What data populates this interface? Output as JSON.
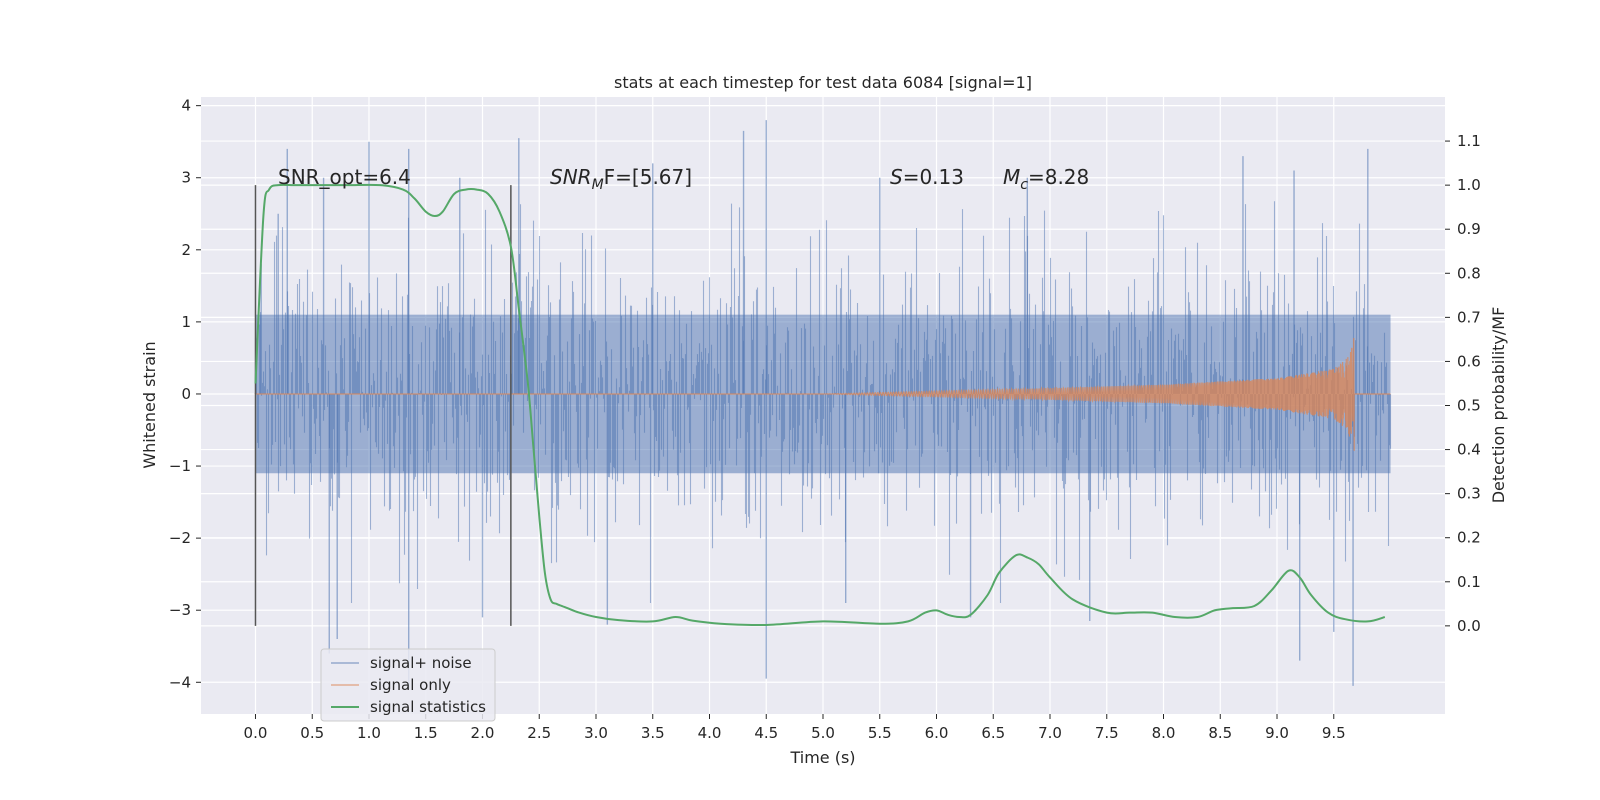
{
  "chart_data": {
    "type": "line",
    "title": "stats at each timestep for test data 6084 [signal=1]",
    "xlabel": "Time (s)",
    "ylabel": "Whitened strain",
    "ylabel_right": "Detection probability/MF",
    "xlim": [
      -0.48,
      10.48
    ],
    "ylim": [
      -4.44,
      4.12
    ],
    "ylim_right": [
      -0.2,
      1.2
    ],
    "x_ticks": [
      "0.0",
      "0.5",
      "1.0",
      "1.5",
      "2.0",
      "2.5",
      "3.0",
      "3.5",
      "4.0",
      "4.5",
      "5.0",
      "5.5",
      "6.0",
      "6.5",
      "7.0",
      "7.5",
      "8.0",
      "8.5",
      "9.0",
      "9.5"
    ],
    "y_ticks": [
      "−4",
      "−3",
      "−2",
      "−1",
      "0",
      "1",
      "2",
      "3",
      "4"
    ],
    "y_right_ticks": [
      "0.0",
      "0.1",
      "0.2",
      "0.3",
      "0.4",
      "0.5",
      "0.6",
      "0.7",
      "0.8",
      "0.9",
      "1.0",
      "1.1"
    ],
    "grid": true,
    "legend_position": "lower-left",
    "colors": {
      "signal_noise": "#4c72b0",
      "signal_only": "#dd8452",
      "statistics": "#55a868",
      "axes_bg": "#eaeaf2",
      "grid": "#ffffff",
      "vline": "#555555"
    },
    "annotations": {
      "snr_opt": "SNR_opt=6.4",
      "snr_mf_base": "SNR",
      "snr_mf_sub": "M",
      "snr_mf_rest": "F=[5.67]",
      "s_base": "S",
      "s_rest": "=0.13",
      "mc_base": "M",
      "mc_sub": "c",
      "mc_rest": "=8.28"
    },
    "vertical_lines_x": [
      0.0,
      2.25
    ],
    "series": [
      {
        "name": "signal+ noise",
        "kind": "noise",
        "x_range": [
          0.0,
          10.0
        ],
        "core_amplitude": 1.1,
        "peaks": [
          {
            "x": 0.05,
            "y": 1.8
          },
          {
            "x": 0.2,
            "y": 2.5
          },
          {
            "x": 0.28,
            "y": 3.4
          },
          {
            "x": 0.6,
            "y": 3.0
          },
          {
            "x": 1.0,
            "y": 3.5
          },
          {
            "x": 1.35,
            "y": 3.4
          },
          {
            "x": 1.8,
            "y": 3.0
          },
          {
            "x": 2.32,
            "y": 3.55
          },
          {
            "x": 3.5,
            "y": 3.2
          },
          {
            "x": 4.3,
            "y": 3.65
          },
          {
            "x": 4.5,
            "y": 3.8
          },
          {
            "x": 5.5,
            "y": 3.0
          },
          {
            "x": 6.8,
            "y": 3.0
          },
          {
            "x": 8.7,
            "y": 3.3
          },
          {
            "x": 9.15,
            "y": 3.1
          },
          {
            "x": 9.8,
            "y": 3.4
          },
          {
            "x": 0.65,
            "y": -3.6
          },
          {
            "x": 0.72,
            "y": -3.4
          },
          {
            "x": 1.35,
            "y": -4.1
          },
          {
            "x": 4.5,
            "y": -3.95
          },
          {
            "x": 9.2,
            "y": -3.7
          },
          {
            "x": 9.67,
            "y": -4.05
          },
          {
            "x": 3.1,
            "y": -3.2
          },
          {
            "x": 6.3,
            "y": -3.1
          },
          {
            "x": 7.35,
            "y": -3.15
          },
          {
            "x": 9.5,
            "y": -3.3
          },
          {
            "x": 2.0,
            "y": -3.1
          },
          {
            "x": 5.2,
            "y": -2.9
          }
        ]
      },
      {
        "name": "signal only",
        "kind": "chirp",
        "x_range": [
          0.0,
          9.68
        ],
        "envelope": [
          {
            "x": 0.0,
            "y": 0.0
          },
          {
            "x": 5.0,
            "y": 0.0
          },
          {
            "x": 6.0,
            "y": 0.04
          },
          {
            "x": 7.0,
            "y": 0.08
          },
          {
            "x": 8.0,
            "y": 0.13
          },
          {
            "x": 9.0,
            "y": 0.22
          },
          {
            "x": 9.5,
            "y": 0.35
          },
          {
            "x": 9.62,
            "y": 0.5
          },
          {
            "x": 9.68,
            "y": 0.8
          }
        ],
        "tail_end": 10.0
      },
      {
        "name": "signal statistics",
        "kind": "right-axis-line",
        "x": [
          0.0,
          0.07,
          0.12,
          0.2,
          0.35,
          0.5,
          0.8,
          1.1,
          1.3,
          1.4,
          1.5,
          1.58,
          1.65,
          1.75,
          1.85,
          1.95,
          2.05,
          2.15,
          2.25,
          2.32,
          2.4,
          2.45,
          2.5,
          2.55,
          2.6,
          2.65,
          2.7,
          2.75,
          2.85,
          3.0,
          3.2,
          3.5,
          3.7,
          3.85,
          4.1,
          4.5,
          5.0,
          5.5,
          5.75,
          5.9,
          6.0,
          6.1,
          6.2,
          6.3,
          6.45,
          6.55,
          6.7,
          6.8,
          6.9,
          7.0,
          7.2,
          7.5,
          7.7,
          7.9,
          8.1,
          8.3,
          8.45,
          8.6,
          8.8,
          8.95,
          9.1,
          9.2,
          9.3,
          9.45,
          9.6,
          9.8,
          9.95
        ],
        "y": [
          0.55,
          0.93,
          0.99,
          1.0,
          1.0,
          1.0,
          1.0,
          1.0,
          0.99,
          0.97,
          0.94,
          0.93,
          0.94,
          0.98,
          0.99,
          0.99,
          0.98,
          0.94,
          0.86,
          0.72,
          0.55,
          0.4,
          0.25,
          0.12,
          0.06,
          0.05,
          0.045,
          0.04,
          0.03,
          0.02,
          0.013,
          0.01,
          0.02,
          0.012,
          0.005,
          0.002,
          0.01,
          0.005,
          0.01,
          0.03,
          0.035,
          0.025,
          0.02,
          0.025,
          0.07,
          0.12,
          0.16,
          0.155,
          0.14,
          0.11,
          0.06,
          0.03,
          0.03,
          0.03,
          0.02,
          0.02,
          0.035,
          0.04,
          0.045,
          0.08,
          0.125,
          0.11,
          0.07,
          0.03,
          0.015,
          0.01,
          0.02
        ]
      }
    ]
  }
}
